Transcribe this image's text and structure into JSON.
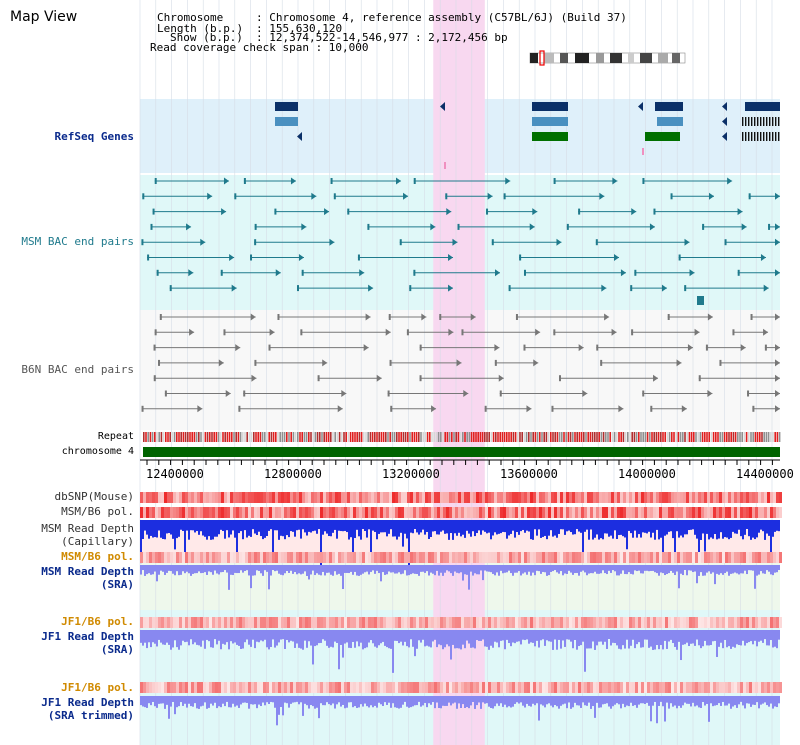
{
  "app": {
    "title": "Map View"
  },
  "info": {
    "chromosome_label": "Chromosome",
    "chromosome_value": ": Chromosome 4, reference assembly (C57BL/6J) (Build 37)",
    "length_label": "Length (b.p.)",
    "length_value": ": 155,630,120",
    "show_label": "Show (b.p.)",
    "show_value": ": 12,374,522-14,546,977 : 2,172,456 bp",
    "coverage_text": "Read coverage check span : 10,000"
  },
  "tracks": {
    "refseq": "RefSeq Genes",
    "msm_bac": "MSM BAC end pairs",
    "b6n_bac": "B6N BAC end pairs",
    "repeat": "Repeat",
    "chromosome": "chromosome 4",
    "dbsnp": "dbSNP(Mouse)",
    "msm_b6_pol_1": "MSM/B6 pol.",
    "msm_read_depth_cap_1": "MSM Read Depth",
    "msm_read_depth_cap_2": "(Capillary)",
    "msm_b6_pol_2": "MSM/B6 pol.",
    "msm_read_depth_sra_1": "MSM Read Depth",
    "msm_read_depth_sra_2": "(SRA)",
    "jf1_b6_pol_1": "JF1/B6 pol.",
    "jf1_read_depth_1": "JF1 Read Depth",
    "jf1_read_depth_2": "(SRA)",
    "jf1_b6_pol_2": "JF1/B6 pol.",
    "jf1_read_depth_trim_1": "JF1 Read Depth",
    "jf1_read_depth_trim_2": "(SRA trimmed)"
  },
  "axis": {
    "ticks": [
      "12400000",
      "12800000",
      "13200000",
      "13600000",
      "14000000",
      "14400000"
    ],
    "range_bp": [
      12374522,
      14546977
    ]
  },
  "highlight_region_bp": [
    13370000,
    13545000
  ],
  "colors": {
    "refseq_bg": "#dff0fa",
    "msm_bg": "#e0f8f8",
    "b6n_bg": "#f8f8f8",
    "highlight": "#f8d8f0",
    "msm_pair": "#1f7a8c",
    "b6n_pair": "#777777",
    "chromosome_bar": "#006400",
    "refseq_navy": "#0b3068",
    "refseq_light": "#4a90c0",
    "refseq_green": "#007000",
    "cap_depth": "#1c2ee0",
    "sra_depth": "#8888f0"
  }
}
